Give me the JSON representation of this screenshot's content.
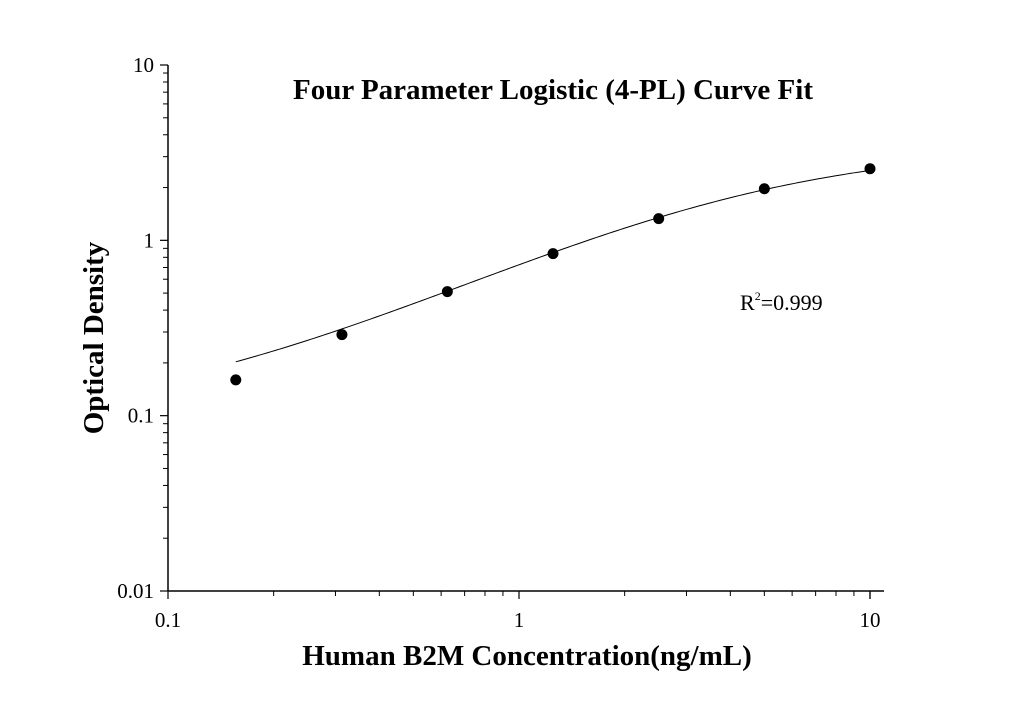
{
  "chart_data": {
    "type": "scatter",
    "title": "Four Parameter Logistic (4-PL) Curve Fit",
    "xlabel": "Human B2M Concentration(ng/mL)",
    "ylabel": "Optical Density",
    "xscale": "log",
    "yscale": "log",
    "xlim": [
      0.1,
      10
    ],
    "ylim": [
      0.01,
      10
    ],
    "xticks": [
      "0.1",
      "1",
      "10"
    ],
    "yticks": [
      "0.01",
      "0.1",
      "1",
      "10"
    ],
    "grid": false,
    "legend": "none",
    "series": [
      {
        "kind": "points",
        "x": [
          0.156,
          0.313,
          0.625,
          1.25,
          2.5,
          5,
          10
        ],
        "y": [
          0.16,
          0.29,
          0.51,
          0.84,
          1.33,
          1.97,
          2.56
        ],
        "color": "#000000"
      },
      {
        "kind": "fit-curve",
        "model": "4PL",
        "params": {
          "a": 0.0905,
          "b": 1.025,
          "c": 4.216,
          "d": 3.5
        },
        "color": "#000000"
      }
    ],
    "annotation": {
      "base": "R",
      "sup": "2",
      "rest": "=0.999"
    }
  }
}
